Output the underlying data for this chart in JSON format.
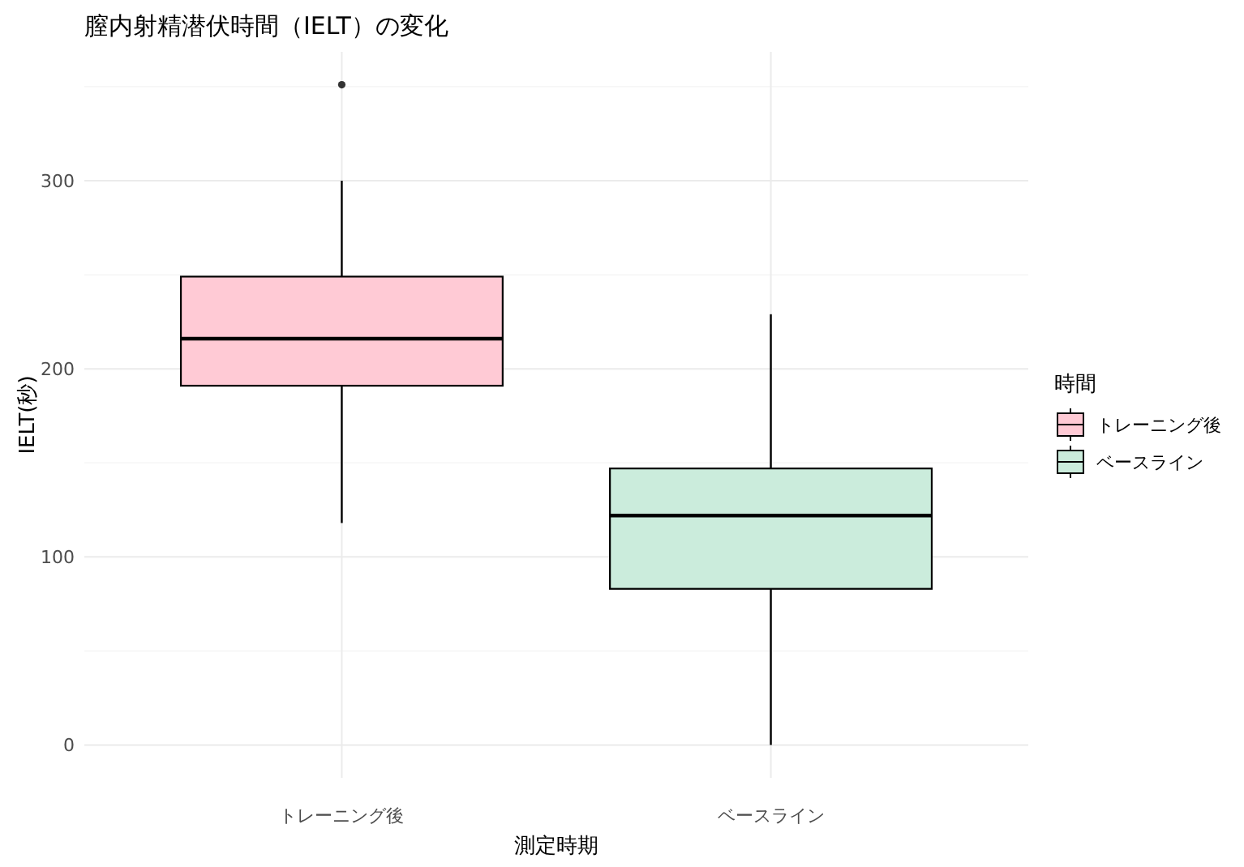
{
  "chart_data": {
    "type": "box",
    "title": "膣内射精潜伏時間（IELT）の変化",
    "xlabel": "測定時期",
    "ylabel": "IELT(秒)",
    "legend_title": "時間",
    "categories": [
      "トレーニング後",
      "ベースライン"
    ],
    "series": [
      {
        "name": "トレーニング後",
        "color": "#ffcad5",
        "boxes": [
          {
            "low": 118,
            "q1": 191,
            "median": 216,
            "q3": 249,
            "high": 300,
            "outliers": [
              351
            ]
          },
          null
        ]
      },
      {
        "name": "ベースライン",
        "color": "#cbecdc",
        "boxes": [
          null,
          {
            "low": 0,
            "q1": 83,
            "median": 122,
            "q3": 147,
            "high": 229
          }
        ]
      }
    ],
    "ylim": [
      -17.5,
      368.5
    ],
    "yticks": [
      0,
      {
        "value": 50,
        "label": null
      },
      100,
      {
        "value": 150,
        "label": null
      },
      200,
      {
        "value": 250,
        "label": null
      },
      300,
      {
        "value": 350,
        "label": null
      }
    ],
    "grid": true,
    "legend": "right"
  }
}
